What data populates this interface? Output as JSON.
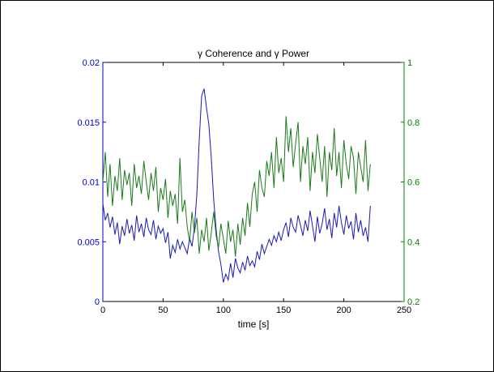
{
  "chart_data": {
    "type": "line",
    "title": "γ Coherence and γ Power",
    "xlabel": "time [s]",
    "xlim": [
      0,
      250
    ],
    "x_ticks": [
      "0",
      "50",
      "100",
      "150",
      "200",
      "250"
    ],
    "y_left": {
      "lim": [
        0,
        0.02
      ],
      "ticks": [
        "0",
        "0.005",
        "0.01",
        "0.015",
        "0.02"
      ],
      "color": "#0000cc"
    },
    "y_right": {
      "lim": [
        0.2,
        1
      ],
      "ticks": [
        "0.2",
        "0.4",
        "0.6",
        "0.8",
        "1"
      ],
      "color": "#008000"
    },
    "grid": false,
    "series": [
      {
        "axis": "left",
        "color": "#1a1ab4",
        "x": [
          0,
          2,
          4,
          6,
          8,
          10,
          12,
          14,
          16,
          18,
          20,
          22,
          24,
          26,
          28,
          30,
          32,
          34,
          36,
          38,
          40,
          42,
          44,
          46,
          48,
          50,
          52,
          54,
          56,
          58,
          60,
          62,
          64,
          66,
          68,
          70,
          72,
          74,
          76,
          78,
          80,
          82,
          84,
          86,
          88,
          90,
          92,
          94,
          96,
          98,
          100,
          102,
          104,
          106,
          108,
          110,
          112,
          114,
          116,
          118,
          120,
          122,
          124,
          126,
          128,
          130,
          132,
          134,
          136,
          138,
          140,
          142,
          144,
          146,
          148,
          150,
          152,
          154,
          156,
          158,
          160,
          162,
          164,
          166,
          168,
          170,
          172,
          174,
          176,
          178,
          180,
          182,
          184,
          186,
          188,
          190,
          192,
          194,
          196,
          198,
          200,
          202,
          204,
          206,
          208,
          210,
          212,
          214,
          216,
          218,
          220,
          222
        ],
        "y": [
          0.0082,
          0.0068,
          0.0074,
          0.0062,
          0.0071,
          0.0056,
          0.0066,
          0.0048,
          0.0063,
          0.0055,
          0.0069,
          0.0057,
          0.0064,
          0.0051,
          0.0072,
          0.0058,
          0.0065,
          0.0054,
          0.007,
          0.006,
          0.0056,
          0.0068,
          0.0052,
          0.0063,
          0.0057,
          0.0061,
          0.0049,
          0.0058,
          0.0036,
          0.0047,
          0.0041,
          0.0052,
          0.0044,
          0.005,
          0.0045,
          0.004,
          0.0053,
          0.0046,
          0.0062,
          0.009,
          0.0135,
          0.0172,
          0.0178,
          0.0162,
          0.0148,
          0.012,
          0.0085,
          0.006,
          0.0042,
          0.0031,
          0.0016,
          0.0023,
          0.0018,
          0.0032,
          0.002,
          0.0036,
          0.0028,
          0.0024,
          0.0033,
          0.0026,
          0.0038,
          0.003,
          0.0034,
          0.0029,
          0.0042,
          0.0035,
          0.0048,
          0.004,
          0.0046,
          0.0052,
          0.0047,
          0.0055,
          0.005,
          0.0058,
          0.0051,
          0.006,
          0.0066,
          0.0054,
          0.007,
          0.0062,
          0.0058,
          0.0072,
          0.0064,
          0.0055,
          0.0068,
          0.0059,
          0.0076,
          0.0063,
          0.005,
          0.0071,
          0.0057,
          0.0065,
          0.0078,
          0.006,
          0.0069,
          0.0053,
          0.0074,
          0.0062,
          0.008,
          0.0066,
          0.0056,
          0.0072,
          0.0061,
          0.0067,
          0.0052,
          0.0074,
          0.0058,
          0.0068,
          0.0055,
          0.0062,
          0.005,
          0.008
        ]
      },
      {
        "axis": "right",
        "color": "#1a7a1a",
        "x": [
          0,
          2,
          4,
          6,
          8,
          10,
          12,
          14,
          16,
          18,
          20,
          22,
          24,
          26,
          28,
          30,
          32,
          34,
          36,
          38,
          40,
          42,
          44,
          46,
          48,
          50,
          52,
          54,
          56,
          58,
          60,
          62,
          64,
          66,
          68,
          70,
          72,
          74,
          76,
          78,
          80,
          82,
          84,
          86,
          88,
          90,
          92,
          94,
          96,
          98,
          100,
          102,
          104,
          106,
          108,
          110,
          112,
          114,
          116,
          118,
          120,
          122,
          124,
          126,
          128,
          130,
          132,
          134,
          136,
          138,
          140,
          142,
          144,
          146,
          148,
          150,
          152,
          154,
          156,
          158,
          160,
          162,
          164,
          166,
          168,
          170,
          172,
          174,
          176,
          178,
          180,
          182,
          184,
          186,
          188,
          190,
          192,
          194,
          196,
          198,
          200,
          202,
          204,
          206,
          208,
          210,
          212,
          214,
          216,
          218,
          220,
          222
        ],
        "y": [
          0.6,
          0.7,
          0.55,
          0.66,
          0.52,
          0.62,
          0.57,
          0.68,
          0.54,
          0.64,
          0.59,
          0.63,
          0.52,
          0.66,
          0.58,
          0.62,
          0.56,
          0.67,
          0.6,
          0.54,
          0.63,
          0.57,
          0.65,
          0.5,
          0.58,
          0.54,
          0.61,
          0.48,
          0.57,
          0.52,
          0.56,
          0.46,
          0.68,
          0.5,
          0.54,
          0.45,
          0.4,
          0.5,
          0.43,
          0.48,
          0.36,
          0.44,
          0.4,
          0.48,
          0.37,
          0.43,
          0.5,
          0.42,
          0.38,
          0.46,
          0.41,
          0.36,
          0.47,
          0.4,
          0.44,
          0.35,
          0.46,
          0.39,
          0.48,
          0.42,
          0.53,
          0.45,
          0.56,
          0.6,
          0.5,
          0.64,
          0.58,
          0.55,
          0.67,
          0.62,
          0.7,
          0.58,
          0.75,
          0.63,
          0.68,
          0.6,
          0.82,
          0.7,
          0.78,
          0.65,
          0.73,
          0.8,
          0.6,
          0.72,
          0.66,
          0.75,
          0.57,
          0.7,
          0.63,
          0.76,
          0.68,
          0.6,
          0.72,
          0.55,
          0.7,
          0.64,
          0.78,
          0.62,
          0.7,
          0.58,
          0.74,
          0.66,
          0.61,
          0.72,
          0.68,
          0.56,
          0.7,
          0.65,
          0.6,
          0.74,
          0.57,
          0.66
        ]
      }
    ]
  }
}
